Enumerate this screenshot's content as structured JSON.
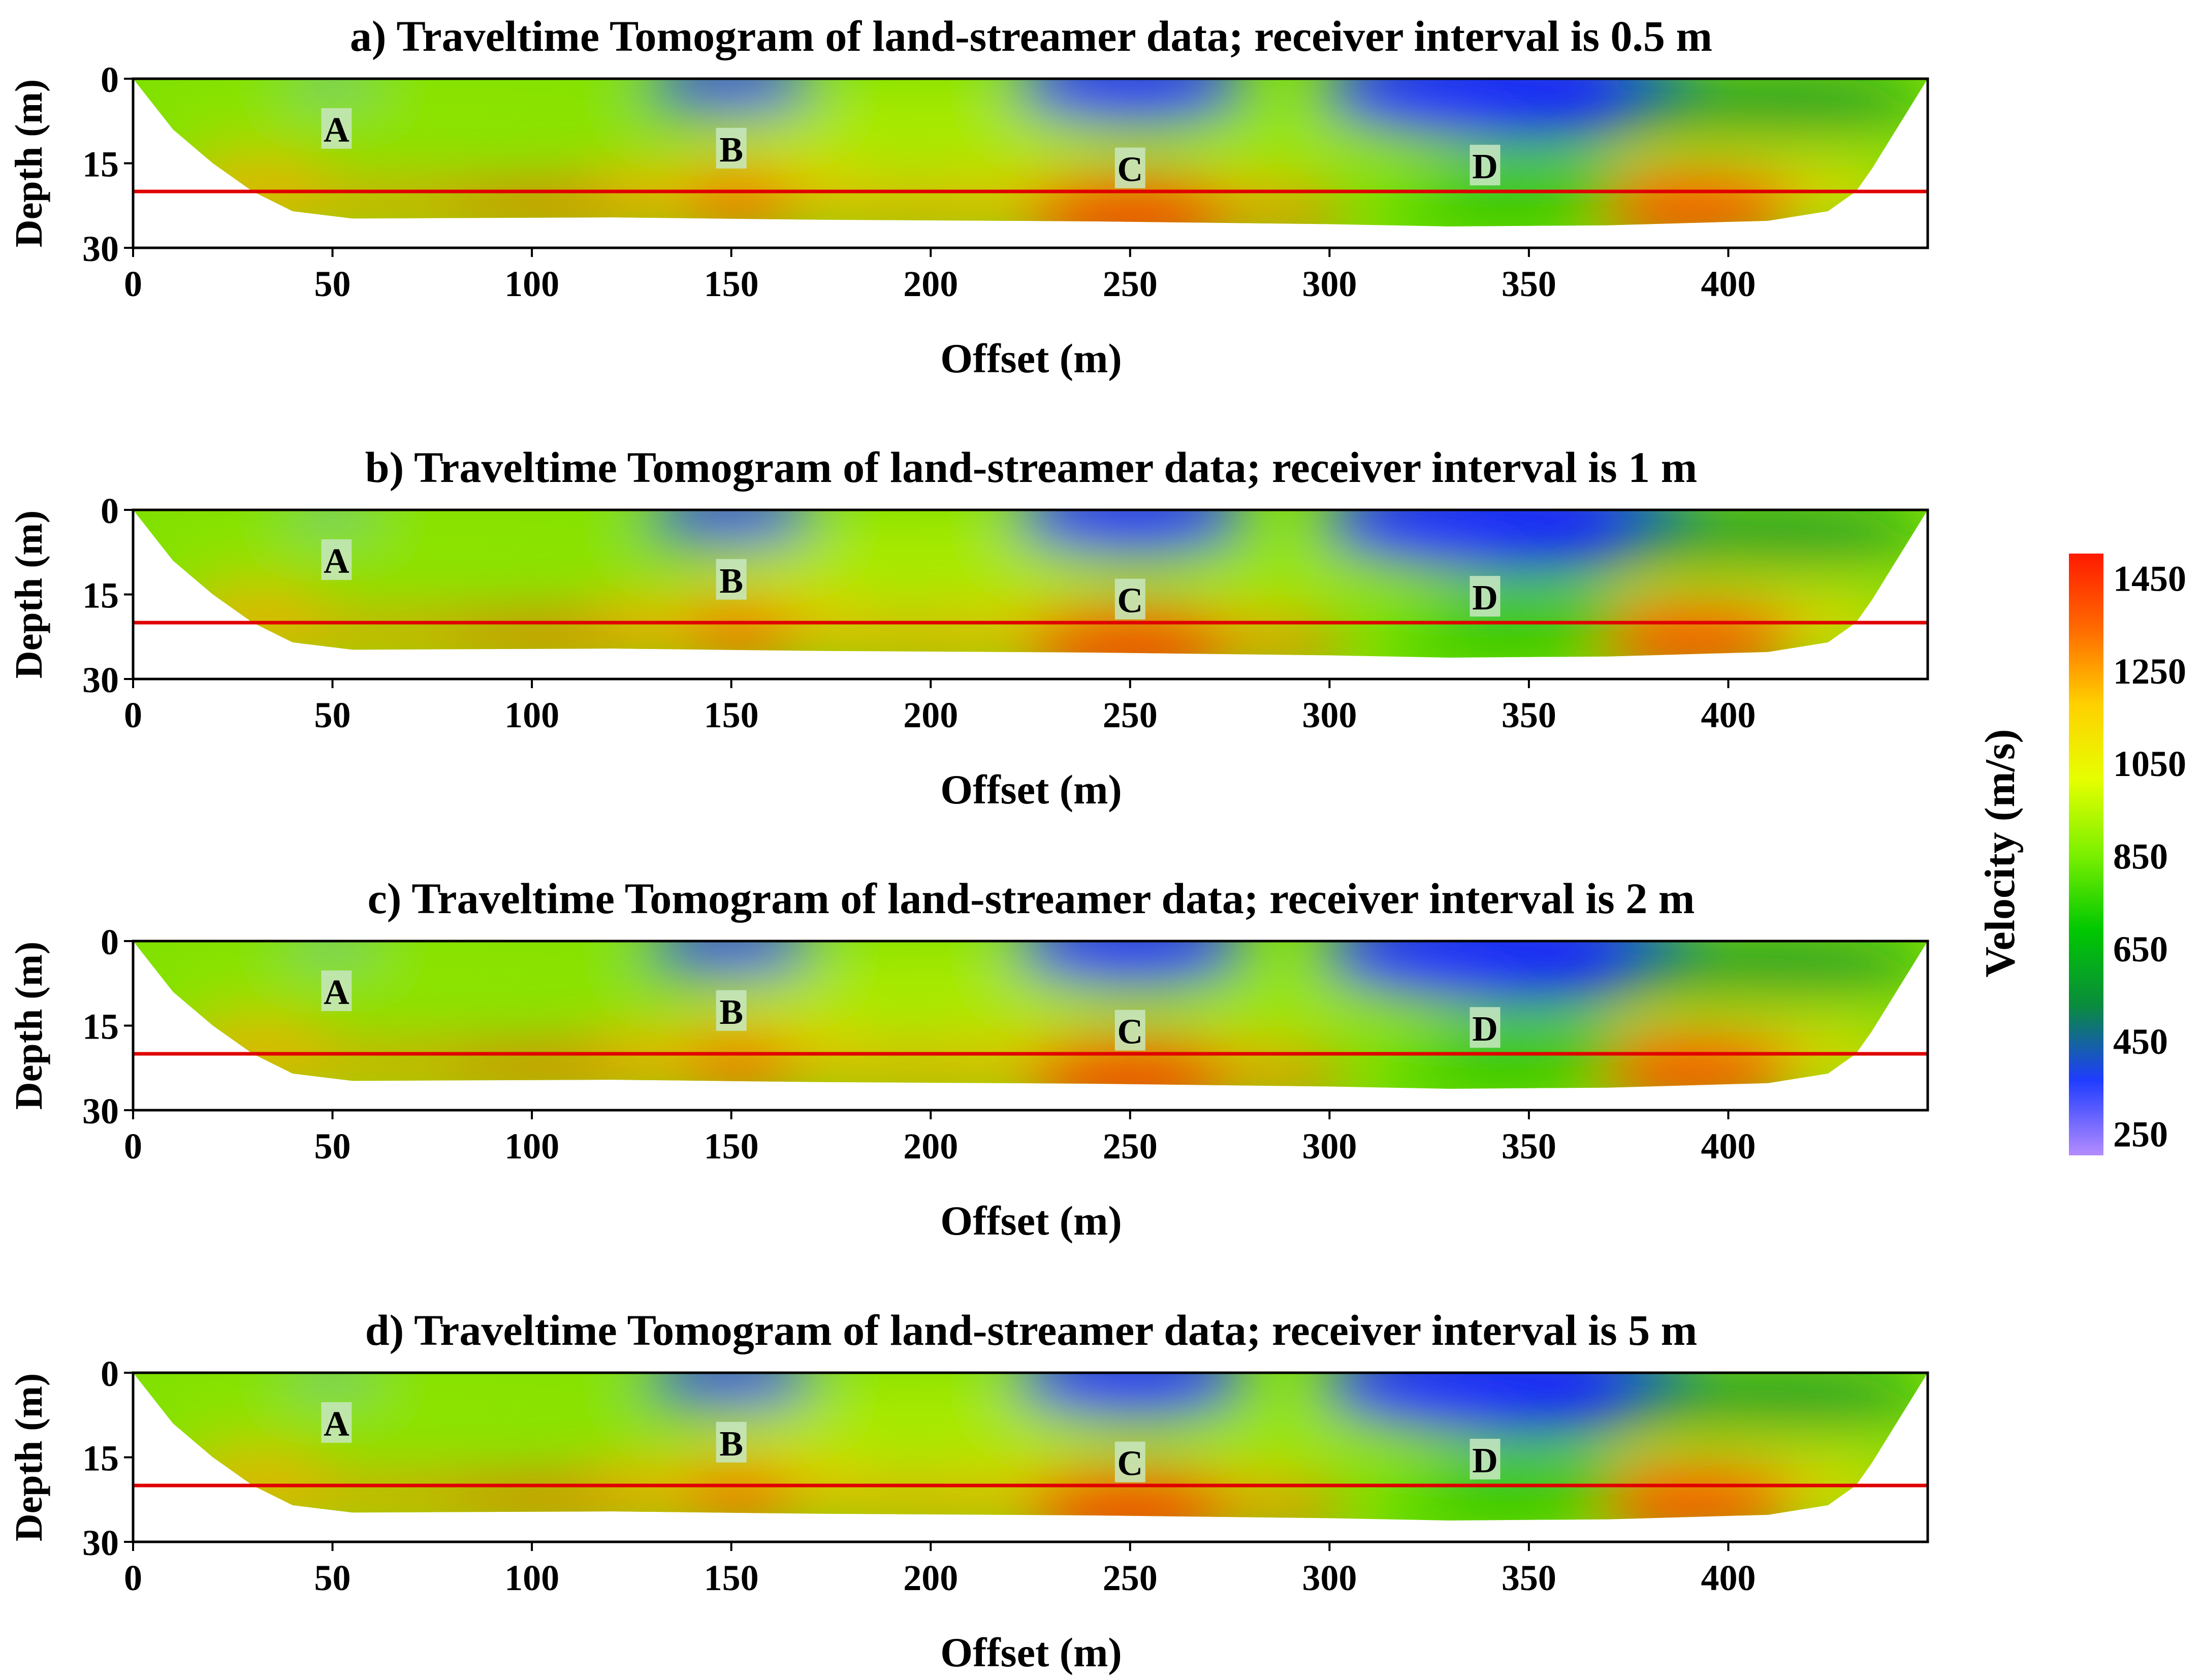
{
  "chart_data": [
    {
      "type": "heatmap",
      "title": "a) Traveltime Tomogram of land-streamer data; receiver interval is 0.5 m",
      "xlabel": "Offset (m)",
      "ylabel": "Depth (m)",
      "xlim": [
        0,
        450
      ],
      "ylim": [
        30,
        0
      ],
      "x_ticks": [
        "0",
        "50",
        "100",
        "150",
        "200",
        "250",
        "300",
        "350",
        "400"
      ],
      "y_ticks": [
        "0",
        "15",
        "30"
      ],
      "reference_line_depth": 20,
      "anomalies": [
        {
          "label": "A",
          "x": 51,
          "depth": 9
        },
        {
          "label": "B",
          "x": 150,
          "depth": 12.5
        },
        {
          "label": "C",
          "x": 250,
          "depth": 16
        },
        {
          "label": "D",
          "x": 339,
          "depth": 15.5
        }
      ]
    },
    {
      "type": "heatmap",
      "title": "b) Traveltime Tomogram of land-streamer data; receiver interval is 1 m",
      "xlabel": "Offset (m)",
      "ylabel": "Depth (m)",
      "xlim": [
        0,
        450
      ],
      "ylim": [
        30,
        0
      ],
      "x_ticks": [
        "0",
        "50",
        "100",
        "150",
        "200",
        "250",
        "300",
        "350",
        "400"
      ],
      "y_ticks": [
        "0",
        "15",
        "30"
      ],
      "reference_line_depth": 20,
      "anomalies": [
        {
          "label": "A",
          "x": 51,
          "depth": 9
        },
        {
          "label": "B",
          "x": 150,
          "depth": 12.5
        },
        {
          "label": "C",
          "x": 250,
          "depth": 16
        },
        {
          "label": "D",
          "x": 339,
          "depth": 15.5
        }
      ]
    },
    {
      "type": "heatmap",
      "title": "c) Traveltime Tomogram of land-streamer data; receiver interval is 2 m",
      "xlabel": "Offset (m)",
      "ylabel": "Depth (m)",
      "xlim": [
        0,
        450
      ],
      "ylim": [
        30,
        0
      ],
      "x_ticks": [
        "0",
        "50",
        "100",
        "150",
        "200",
        "250",
        "300",
        "350",
        "400"
      ],
      "y_ticks": [
        "0",
        "15",
        "30"
      ],
      "reference_line_depth": 20,
      "anomalies": [
        {
          "label": "A",
          "x": 51,
          "depth": 9
        },
        {
          "label": "B",
          "x": 150,
          "depth": 12.5
        },
        {
          "label": "C",
          "x": 250,
          "depth": 16
        },
        {
          "label": "D",
          "x": 339,
          "depth": 15.5
        }
      ]
    },
    {
      "type": "heatmap",
      "title": "d) Traveltime Tomogram of land-streamer data; receiver interval is 5 m",
      "xlabel": "Offset (m)",
      "ylabel": "Depth (m)",
      "xlim": [
        0,
        450
      ],
      "ylim": [
        30,
        0
      ],
      "x_ticks": [
        "0",
        "50",
        "100",
        "150",
        "200",
        "250",
        "300",
        "350",
        "400"
      ],
      "y_ticks": [
        "0",
        "15",
        "30"
      ],
      "reference_line_depth": 20,
      "anomalies": [
        {
          "label": "A",
          "x": 51,
          "depth": 9
        },
        {
          "label": "B",
          "x": 150,
          "depth": 12.5
        },
        {
          "label": "C",
          "x": 250,
          "depth": 16
        },
        {
          "label": "D",
          "x": 339,
          "depth": 15.5
        }
      ]
    }
  ],
  "colorbar": {
    "label": "Velocity (m/s)",
    "range": [
      200,
      1500
    ],
    "ticks": [
      "1450",
      "1250",
      "1050",
      "850",
      "650",
      "450",
      "250"
    ],
    "colors": [
      "#ff1a00",
      "#ff6a00",
      "#ffd000",
      "#e6ff00",
      "#7cf000",
      "#00c800",
      "#0a8c3c",
      "#1f3cff",
      "#b48cff"
    ]
  },
  "colors": {
    "reference_line": "#e00000",
    "label_box": "#c8e8c0"
  }
}
